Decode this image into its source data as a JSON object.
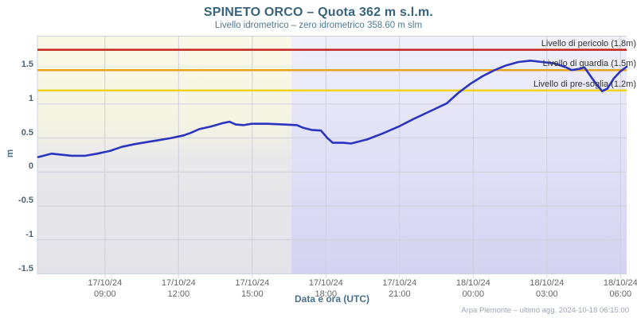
{
  "header": {
    "title": "SPINETO ORCO – Quota 362 m s.l.m.",
    "subtitle": "Livello idrometrico – zero idrometrico 358.60 m slm"
  },
  "axes": {
    "x_title": "Data e ora (UTC)",
    "y_title": "m"
  },
  "footer": {
    "credits": "Arpa Piemonte – ultimo agg. 2024-10-18 06:15:00"
  },
  "colors": {
    "series_line": "#2b34c1",
    "danger_line": "#c5251f",
    "guard_line": "#e9a21d",
    "prealert_line": "#f0d222",
    "gridline": "#cfcfda",
    "axis_line": "#c9d4e4",
    "title_text": "#38637c",
    "axis_title_text": "#46708b",
    "x_tick_text": "#666666",
    "y_tick_text": "#4d6373"
  },
  "chart_data": {
    "type": "line",
    "title": "SPINETO ORCO – Quota 362 m s.l.m.",
    "subtitle": "Livello idrometrico – zero idrometrico 358.60 m slm",
    "xlabel": "Data e ora (UTC)",
    "ylabel": "m",
    "ylim": [
      -1.5,
      2.0
    ],
    "x_span_hours": 24,
    "grid": true,
    "legend": "none",
    "y_ticks": [
      {
        "v": 1.5,
        "label": "1.5"
      },
      {
        "v": 1.0,
        "label": "1"
      },
      {
        "v": 0.5,
        "label": "0.5"
      },
      {
        "v": 0.0,
        "label": "0"
      },
      {
        "v": -0.5,
        "label": "-0.5"
      },
      {
        "v": -1.0,
        "label": "-1"
      },
      {
        "v": -1.5,
        "label": "-1.5"
      }
    ],
    "gridline_values": [
      2.0,
      1.5,
      1.0,
      0.5,
      0.0,
      -0.5,
      -1.0,
      -1.5
    ],
    "x_ticks": [
      {
        "t": 2.75,
        "date": "17/10/24",
        "time": "09:00"
      },
      {
        "t": 5.75,
        "date": "17/10/24",
        "time": "12:00"
      },
      {
        "t": 8.75,
        "date": "17/10/24",
        "time": "15:00"
      },
      {
        "t": 11.75,
        "date": "17/10/24",
        "time": "18:00"
      },
      {
        "t": 14.75,
        "date": "17/10/24",
        "time": "21:00"
      },
      {
        "t": 17.75,
        "date": "18/10/24",
        "time": "00:00"
      },
      {
        "t": 20.75,
        "date": "18/10/24",
        "time": "03:00"
      },
      {
        "t": 23.75,
        "date": "18/10/24",
        "time": "06:00"
      }
    ],
    "thresholds": [
      {
        "name": "pericolo",
        "label": "Livello di pericolo (1.8m)",
        "value": 1.8,
        "color": "#c5251f"
      },
      {
        "name": "guardia",
        "label": "Livello di guardia (1.5m)",
        "value": 1.5,
        "color": "#e9a21d"
      },
      {
        "name": "pre-soglia",
        "label": "Livello di pre-soglia (1.2m)",
        "value": 1.2,
        "color": "#f0d222"
      }
    ],
    "bands": [
      {
        "name": "day",
        "from_t": 0,
        "to_t": 10.35
      },
      {
        "name": "night",
        "from_t": 10.35,
        "to_t": 24
      }
    ],
    "series": [
      {
        "name": "livello-idrometrico-m",
        "color": "#2b34c1",
        "t_unit": "hours from chart start",
        "points": [
          [
            0.03,
            0.22
          ],
          [
            0.58,
            0.27
          ],
          [
            1.39,
            0.24
          ],
          [
            1.95,
            0.24
          ],
          [
            2.43,
            0.27
          ],
          [
            2.95,
            0.31
          ],
          [
            3.44,
            0.37
          ],
          [
            3.96,
            0.41
          ],
          [
            4.44,
            0.44
          ],
          [
            4.96,
            0.47
          ],
          [
            5.45,
            0.5
          ],
          [
            5.97,
            0.54
          ],
          [
            6.27,
            0.58
          ],
          [
            6.58,
            0.63
          ],
          [
            7.07,
            0.67
          ],
          [
            7.56,
            0.72
          ],
          [
            7.82,
            0.74
          ],
          [
            8.08,
            0.7
          ],
          [
            8.4,
            0.69
          ],
          [
            8.72,
            0.71
          ],
          [
            9.37,
            0.71
          ],
          [
            10.02,
            0.7
          ],
          [
            10.57,
            0.69
          ],
          [
            10.83,
            0.65
          ],
          [
            11.16,
            0.62
          ],
          [
            11.55,
            0.61
          ],
          [
            11.81,
            0.5
          ],
          [
            12.03,
            0.43
          ],
          [
            12.45,
            0.43
          ],
          [
            12.78,
            0.42
          ],
          [
            13.43,
            0.48
          ],
          [
            14.08,
            0.57
          ],
          [
            14.72,
            0.67
          ],
          [
            15.37,
            0.79
          ],
          [
            16.02,
            0.9
          ],
          [
            16.67,
            1.01
          ],
          [
            17.16,
            1.17
          ],
          [
            17.64,
            1.3
          ],
          [
            18.13,
            1.41
          ],
          [
            18.62,
            1.5
          ],
          [
            19.1,
            1.57
          ],
          [
            19.59,
            1.62
          ],
          [
            20.08,
            1.64
          ],
          [
            20.56,
            1.62
          ],
          [
            21.05,
            1.6
          ],
          [
            21.54,
            1.54
          ],
          [
            21.76,
            1.5
          ],
          [
            22.09,
            1.52
          ],
          [
            22.28,
            1.54
          ],
          [
            22.67,
            1.34
          ],
          [
            23.0,
            1.19
          ],
          [
            23.22,
            1.23
          ],
          [
            23.48,
            1.38
          ],
          [
            23.74,
            1.48
          ],
          [
            24.0,
            1.55
          ]
        ]
      }
    ]
  }
}
